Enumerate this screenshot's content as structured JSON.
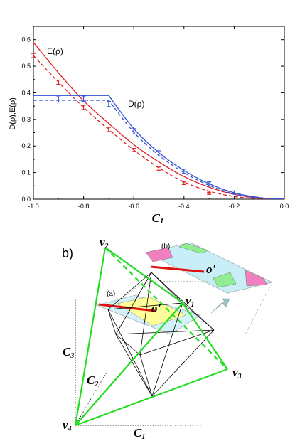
{
  "chart_data": {
    "type": "line",
    "title": "",
    "xlabel": "C1",
    "ylabel": "D(ρ),E(ρ)",
    "xlim": [
      -1.0,
      0.0
    ],
    "ylim": [
      0.0,
      0.65
    ],
    "x_ticks": [
      "-1.0",
      "-0.8",
      "-0.6",
      "-0.4",
      "-0.2",
      "0.0"
    ],
    "y_ticks": [
      "0.0",
      "0.1",
      "0.2",
      "0.3",
      "0.4",
      "0.5",
      "0.6"
    ],
    "grid": false,
    "series": [
      {
        "name": "E(ρ)",
        "style": "solid",
        "color": "#e02020",
        "x": [
          -1.0,
          -0.9,
          -0.8,
          -0.7,
          -0.6,
          -0.5,
          -0.4,
          -0.3,
          -0.2,
          -0.1,
          0.0
        ],
        "y": [
          0.59,
          0.475,
          0.37,
          0.285,
          0.205,
          0.14,
          0.085,
          0.045,
          0.018,
          0.004,
          0.0
        ]
      },
      {
        "style": "dashed",
        "color": "#e02020",
        "x": [
          -1.0,
          -0.9,
          -0.8,
          -0.7,
          -0.6,
          -0.5,
          -0.4,
          -0.3,
          -0.2,
          -0.1,
          0.0
        ],
        "y": [
          0.54,
          0.44,
          0.345,
          0.262,
          0.185,
          0.118,
          0.065,
          0.03,
          0.01,
          0.002,
          0.0
        ],
        "error_points": {
          "x": [
            -1.0,
            -0.9,
            -0.8,
            -0.7,
            -0.6,
            -0.5,
            -0.4,
            -0.3
          ],
          "y": [
            0.54,
            0.44,
            0.345,
            0.262,
            0.185,
            0.115,
            0.06,
            0.022
          ],
          "err": [
            0.008,
            0.008,
            0.008,
            0.008,
            0.006,
            0.006,
            0.005,
            0.004
          ]
        }
      },
      {
        "name": "D(ρ)",
        "style": "solid",
        "color": "#3050d8",
        "x": [
          -1.0,
          -0.9,
          -0.8,
          -0.7,
          -0.6,
          -0.5,
          -0.4,
          -0.3,
          -0.2,
          -0.1,
          0.0
        ],
        "y": [
          0.39,
          0.39,
          0.39,
          0.39,
          0.265,
          0.175,
          0.108,
          0.058,
          0.024,
          0.006,
          0.0
        ]
      },
      {
        "style": "dashed",
        "color": "#3050d8",
        "x": [
          -1.0,
          -0.9,
          -0.8,
          -0.7,
          -0.6,
          -0.5,
          -0.4,
          -0.3,
          -0.2,
          -0.1,
          0.0
        ],
        "y": [
          0.372,
          0.372,
          0.372,
          0.372,
          0.252,
          0.165,
          0.1,
          0.052,
          0.02,
          0.004,
          0.0
        ],
        "error_points": {
          "x": [
            -0.9,
            -0.8,
            -0.7,
            -0.6,
            -0.5,
            -0.4,
            -0.3,
            -0.2
          ],
          "y": [
            0.375,
            0.378,
            0.358,
            0.255,
            0.172,
            0.105,
            0.057,
            0.025
          ],
          "err": [
            0.01,
            0.01,
            0.01,
            0.01,
            0.01,
            0.008,
            0.008,
            0.006
          ]
        }
      }
    ],
    "annotations": [
      "E(ρ)",
      "D(ρ)"
    ]
  },
  "diagram": {
    "panel_label": "b)",
    "sub_a": "(a)",
    "sub_b": "(b)",
    "origin_label": "o'",
    "vertices": {
      "v1": {
        "base": "v",
        "sub": "1"
      },
      "v2": {
        "base": "v",
        "sub": "2"
      },
      "v3": {
        "base": "v",
        "sub": "3"
      },
      "v4": {
        "base": "v",
        "sub": "4"
      }
    },
    "axes": {
      "c1": {
        "base": "C",
        "sub": "1"
      },
      "c2": {
        "base": "C",
        "sub": "2"
      },
      "c3": {
        "base": "C",
        "sub": "3"
      }
    },
    "colors": {
      "tetrahedron": "#22dd22",
      "octahedron": "#000000",
      "cross_section_yellow": "#ffff99",
      "cross_section_cyan": "#c8eef8",
      "region_pink": "#f080c0",
      "region_green": "#90ee90",
      "red_segment": "#e01010",
      "arrow": "#a0c0c8"
    }
  }
}
